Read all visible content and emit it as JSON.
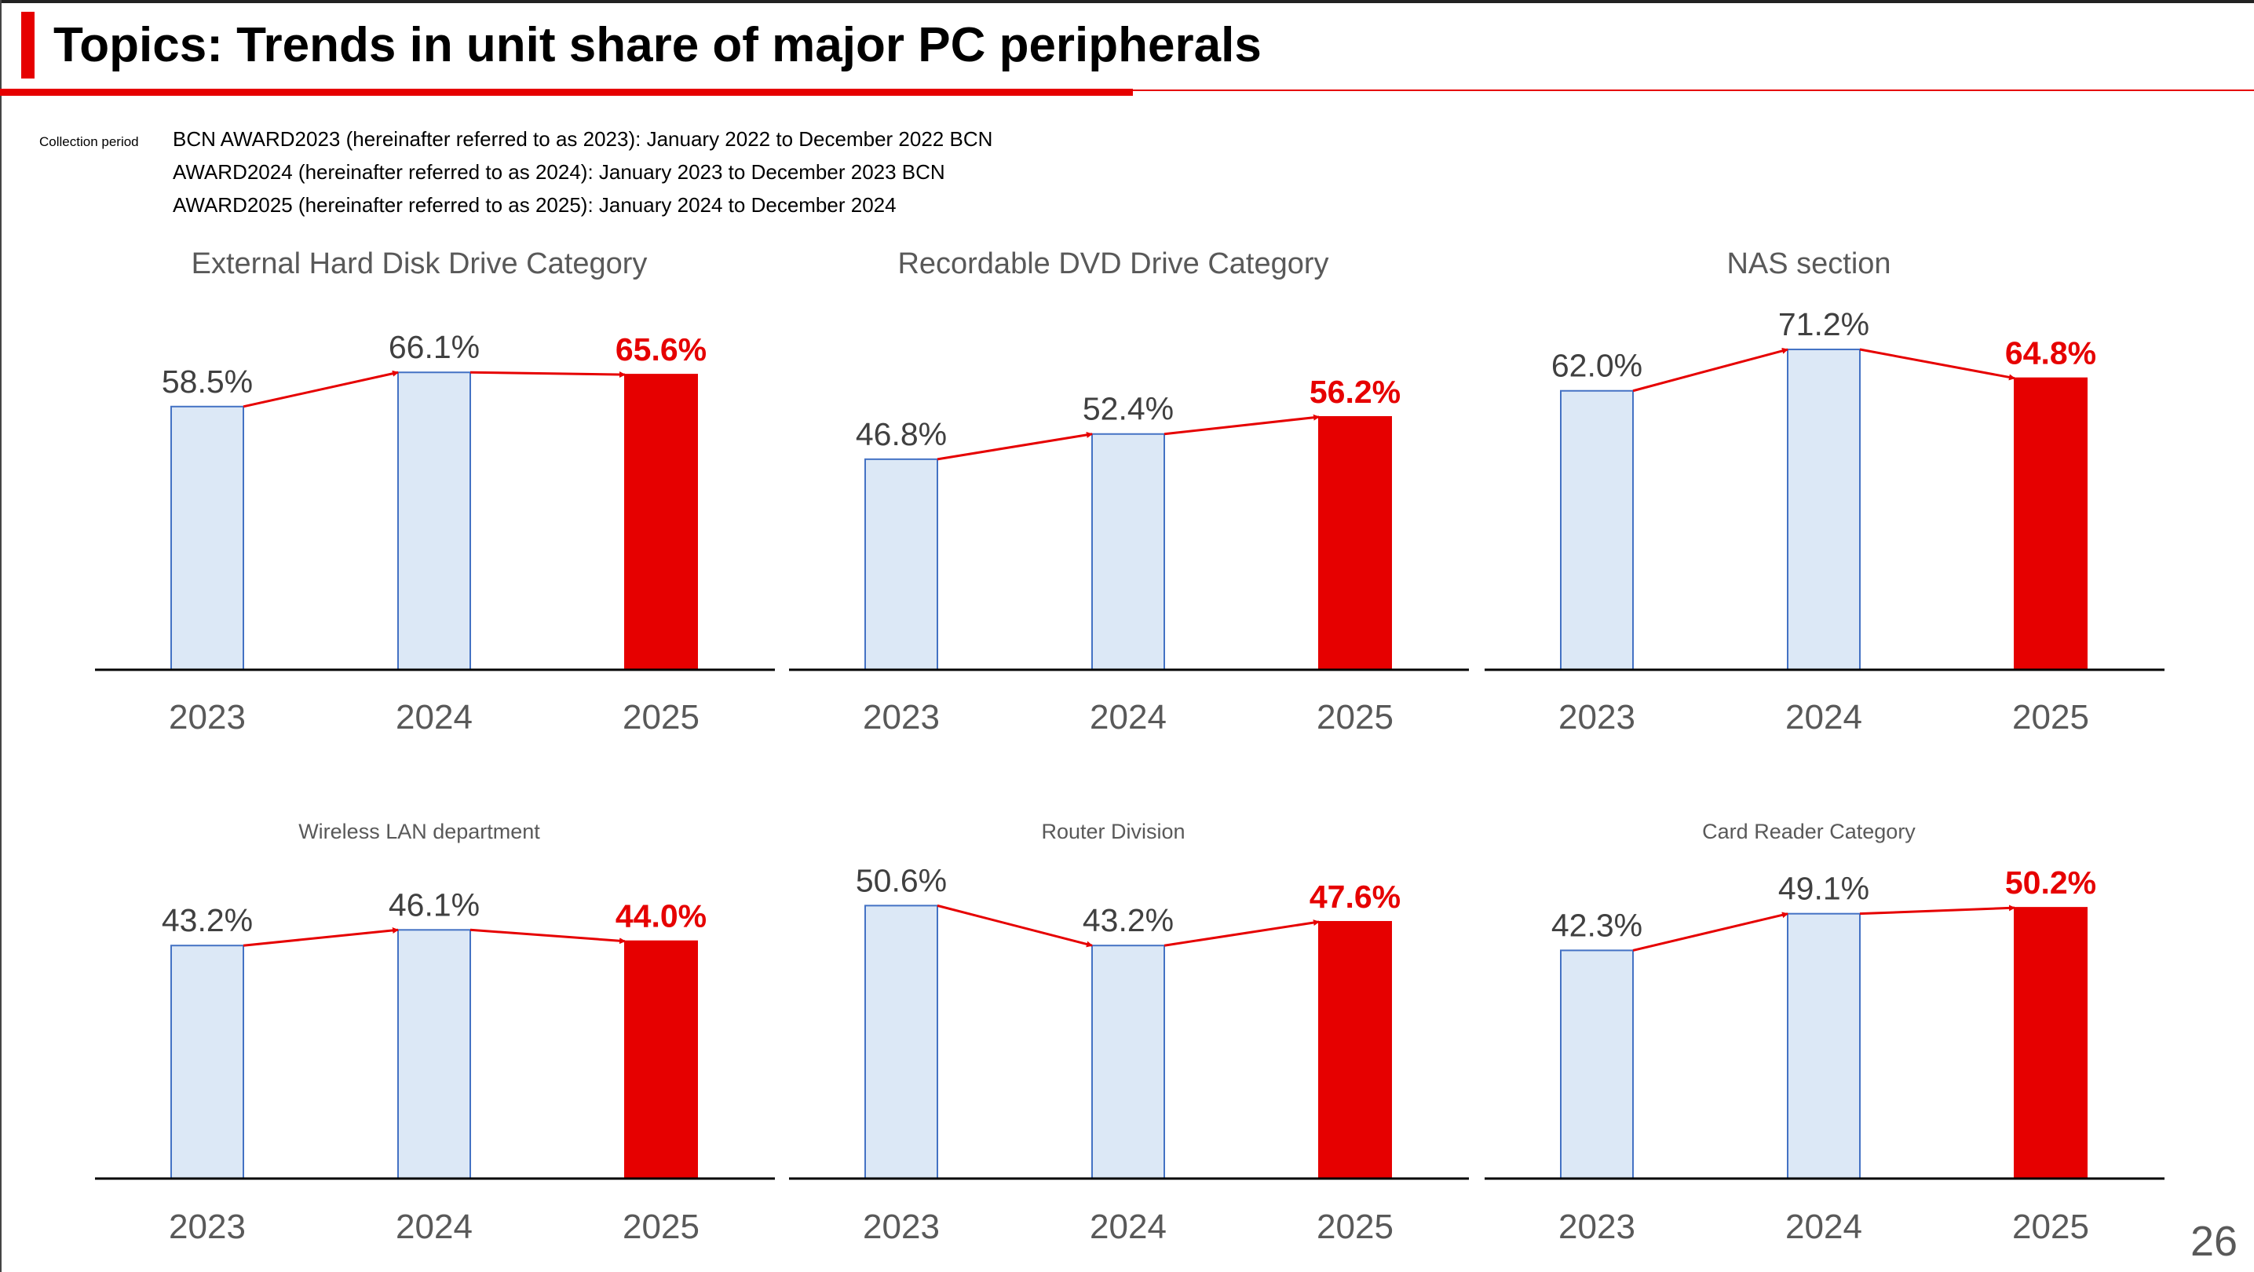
{
  "header": {
    "title": "Topics: Trends in unit share of major PC peripherals"
  },
  "collection": {
    "label": "Collection period",
    "lines": [
      "BCN AWARD2023 (hereinafter referred to as 2023): January 2022 to December 2022 BCN",
      "AWARD2024 (hereinafter referred to as 2024): January 2023 to December 2023 BCN",
      "AWARD2025 (hereinafter referred to as 2025): January 2024 to December 2024"
    ]
  },
  "page_number": "26",
  "colors": {
    "accent": "#e60000",
    "bar_fill": "#dce8f6",
    "bar_border": "#4472c4",
    "axis_text": "#595959"
  },
  "chart_data": [
    {
      "type": "bar",
      "title": "External Hard Disk Drive Category",
      "categories": [
        "2023",
        "2024",
        "2025"
      ],
      "values": [
        58.5,
        66.1,
        65.6
      ],
      "labels": [
        "58.5%",
        "66.1%",
        "65.6%"
      ],
      "highlight": "2025"
    },
    {
      "type": "bar",
      "title": "Recordable DVD Drive Category",
      "categories": [
        "2023",
        "2024",
        "2025"
      ],
      "values": [
        46.8,
        52.4,
        56.2
      ],
      "labels": [
        "46.8%",
        "52.4%",
        "56.2%"
      ],
      "highlight": "2025"
    },
    {
      "type": "bar",
      "title": "NAS section",
      "categories": [
        "2023",
        "2024",
        "2025"
      ],
      "values": [
        62.0,
        71.2,
        64.8
      ],
      "labels": [
        "62.0%",
        "71.2%",
        "64.8%"
      ],
      "highlight": "2025"
    },
    {
      "type": "bar",
      "title": "Wireless LAN department",
      "categories": [
        "2023",
        "2024",
        "2025"
      ],
      "values": [
        43.2,
        46.1,
        44.0
      ],
      "labels": [
        "43.2%",
        "46.1%",
        "44.0%"
      ],
      "highlight": "2025"
    },
    {
      "type": "bar",
      "title": "Router Division",
      "categories": [
        "2023",
        "2024",
        "2025"
      ],
      "values": [
        50.6,
        43.2,
        47.6
      ],
      "labels": [
        "50.6%",
        "43.2%",
        "47.6%"
      ],
      "highlight": "2025"
    },
    {
      "type": "bar",
      "title": "Card Reader Category",
      "categories": [
        "2023",
        "2024",
        "2025"
      ],
      "values": [
        42.3,
        49.1,
        50.2
      ],
      "labels": [
        "42.3%",
        "49.1%",
        "50.2%"
      ],
      "highlight": "2025"
    }
  ]
}
